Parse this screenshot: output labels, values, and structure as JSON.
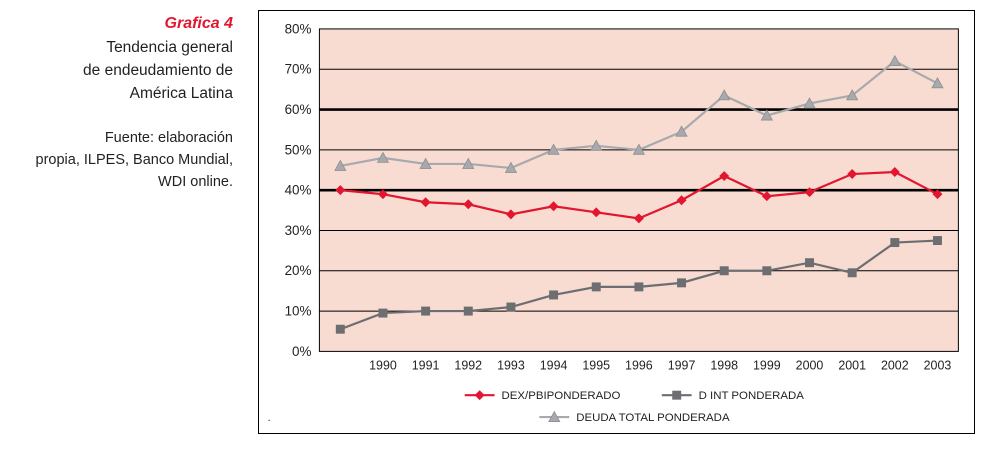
{
  "sidebar": {
    "title": "Grafica 4",
    "subtitle_lines": [
      "Tendencia general",
      "de endeudamiento de",
      "América Latina"
    ],
    "source_lines": [
      "Fuente: elaboración",
      "propia, ILPES, Banco Mundial,",
      "WDI online."
    ]
  },
  "footnote_dot": ".",
  "colors": {
    "accent_red": "#e3152f",
    "dark_gray": "#6d6e71",
    "light_gray": "#a7a9ac",
    "plot_background": "#f8dcd2",
    "gridline": "#000000",
    "text": "#231f20"
  },
  "chart_data": {
    "type": "line",
    "title": "Tendencia general de endeudamiento de América Latina",
    "categories": [
      "",
      "1990",
      "1991",
      "1992",
      "1993",
      "1994",
      "1995",
      "1996",
      "1997",
      "1998",
      "1999",
      "2000",
      "2001",
      "2002",
      "2003"
    ],
    "series": [
      {
        "name": "DEX/PBIPONDERADO",
        "marker": "diamond",
        "color": "#e3152f",
        "values": [
          40,
          39,
          37,
          36.5,
          34,
          36,
          34.5,
          33,
          37.5,
          43.5,
          38.5,
          39.5,
          44,
          44.5,
          39
        ]
      },
      {
        "name": "D INT PONDERADA",
        "marker": "square",
        "color": "#6d6e71",
        "values": [
          5.5,
          9.5,
          10,
          10,
          11,
          14,
          16,
          16,
          17,
          20,
          20,
          22,
          19.5,
          27,
          27.5
        ]
      },
      {
        "name": "DEUDA TOTAL PONDERADA",
        "marker": "triangle",
        "color": "#a7a9ac",
        "values": [
          46,
          48,
          46.5,
          46.5,
          45.5,
          50,
          51,
          50,
          54.5,
          63.5,
          58.5,
          61.5,
          63.5,
          72,
          66.5
        ]
      }
    ],
    "ylim": [
      0,
      80
    ],
    "ytick_step": 10,
    "ytick_suffix": "%",
    "emphasis_gridlines": [
      40,
      60
    ],
    "grid": true,
    "legend_position": "bottom"
  }
}
